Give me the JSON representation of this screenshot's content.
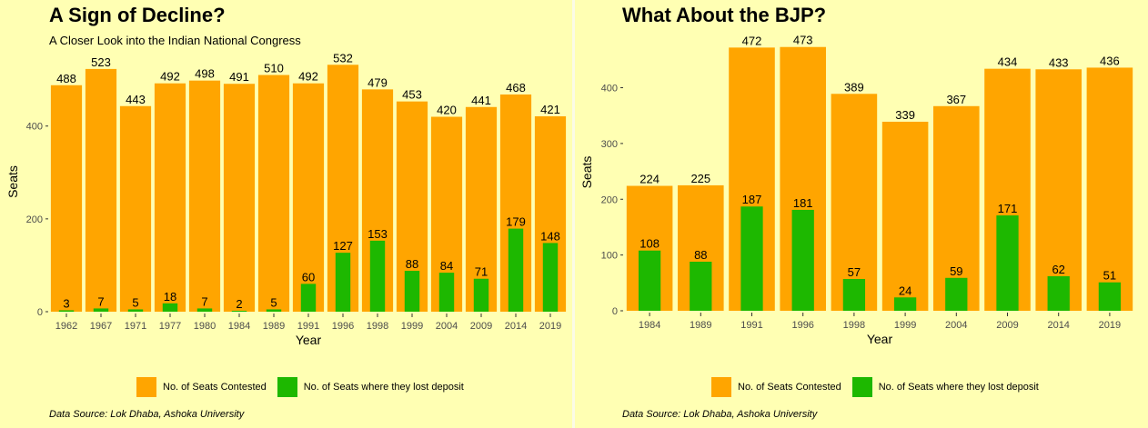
{
  "colors": {
    "contested": "#ffa500",
    "lost": "#1db800",
    "background": "#ffffb3"
  },
  "legend": {
    "contested": "No. of Seats Contested",
    "lost": "No. of Seats where they lost deposit"
  },
  "panels": {
    "left": {
      "title": "A Sign of Decline?",
      "subtitle": "A Closer Look into the Indian National Congress",
      "caption": "Data Source: Lok Dhaba, Ashoka University"
    },
    "right": {
      "title": "What About the BJP?",
      "subtitle": "",
      "caption": "Data Source: Lok Dhaba, Ashoka University"
    }
  },
  "chart_data": [
    {
      "type": "bar",
      "title": "A Sign of Decline?",
      "subtitle": "A Closer Look into the Indian National Congress",
      "xlabel": "Year",
      "ylabel": "Seats",
      "categories": [
        "1962",
        "1967",
        "1971",
        "1977",
        "1980",
        "1984",
        "1989",
        "1991",
        "1996",
        "1998",
        "1999",
        "2004",
        "2009",
        "2014",
        "2019"
      ],
      "series": [
        {
          "name": "No. of Seats Contested",
          "values": [
            488,
            523,
            443,
            492,
            498,
            491,
            510,
            492,
            532,
            479,
            453,
            420,
            441,
            468,
            421
          ]
        },
        {
          "name": "No. of Seats where they lost deposit",
          "values": [
            3,
            7,
            5,
            18,
            7,
            2,
            5,
            60,
            127,
            153,
            88,
            84,
            71,
            179,
            148
          ]
        }
      ],
      "yticks": [
        0,
        200,
        400
      ],
      "ylim": [
        0,
        560
      ],
      "grid": false,
      "legend_position": "bottom"
    },
    {
      "type": "bar",
      "title": "What About the BJP?",
      "xlabel": "Year",
      "ylabel": "Seats",
      "categories": [
        "1984",
        "1989",
        "1991",
        "1996",
        "1998",
        "1999",
        "2004",
        "2009",
        "2014",
        "2019"
      ],
      "series": [
        {
          "name": "No. of Seats Contested",
          "values": [
            224,
            225,
            472,
            473,
            389,
            339,
            367,
            434,
            433,
            436
          ]
        },
        {
          "name": "No. of Seats where they lost deposit",
          "values": [
            108,
            88,
            187,
            181,
            57,
            24,
            59,
            171,
            62,
            51
          ]
        }
      ],
      "yticks": [
        0,
        100,
        200,
        300,
        400
      ],
      "ylim": [
        0,
        497
      ],
      "grid": false,
      "legend_position": "bottom"
    }
  ]
}
